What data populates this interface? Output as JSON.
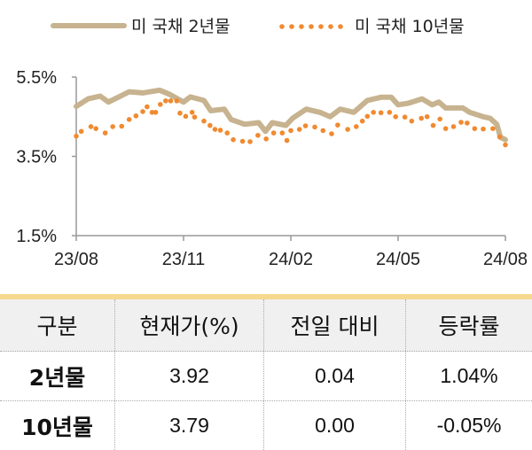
{
  "chart_data": {
    "type": "line",
    "title": "",
    "xlabel": "",
    "ylabel": "",
    "x_unit": "months since 23/08",
    "xticks": [
      "23/08",
      "23/11",
      "24/02",
      "24/05",
      "24/08"
    ],
    "yticks": [
      "5.5%",
      "3.5%",
      "1.5%"
    ],
    "ylim": [
      1.5,
      5.5
    ],
    "xlim": [
      0,
      12
    ],
    "legend_position": "top",
    "colors": {
      "two_year": "#c7b38f",
      "ten_year": "#f08a30"
    },
    "series": [
      {
        "name": "미 국채 2년물",
        "style": "line",
        "x": [
          0,
          0.33,
          0.67,
          0.9,
          1.19,
          1.48,
          1.86,
          2.33,
          2.62,
          3.0,
          3.19,
          3.57,
          3.76,
          4.14,
          4.33,
          4.71,
          5.1,
          5.29,
          5.48,
          5.86,
          6.05,
          6.43,
          6.81,
          7.1,
          7.38,
          7.76,
          8.14,
          8.52,
          8.81,
          9.0,
          9.29,
          9.67,
          9.95,
          10.14,
          10.33,
          10.81,
          11.0,
          11.38,
          11.57,
          11.76,
          11.86,
          12
        ],
        "y": [
          4.76,
          4.95,
          5.02,
          4.87,
          5.0,
          5.13,
          5.1,
          5.17,
          5.06,
          4.87,
          5.0,
          4.91,
          4.65,
          4.69,
          4.43,
          4.31,
          4.35,
          4.13,
          4.35,
          4.28,
          4.46,
          4.69,
          4.61,
          4.5,
          4.69,
          4.61,
          4.91,
          4.99,
          4.99,
          4.8,
          4.84,
          4.95,
          4.8,
          4.87,
          4.72,
          4.72,
          4.61,
          4.5,
          4.46,
          4.31,
          3.98,
          3.92
        ]
      },
      {
        "name": "미 국채 10년물",
        "style": "dots",
        "x": [
          0,
          0.14,
          0.41,
          0.55,
          0.81,
          1.02,
          1.27,
          1.48,
          1.67,
          1.86,
          1.98,
          2.12,
          2.22,
          2.35,
          2.5,
          2.64,
          2.81,
          2.9,
          3.06,
          3.24,
          3.31,
          3.57,
          3.74,
          3.88,
          4.03,
          4.22,
          4.39,
          4.65,
          4.86,
          5.08,
          5.31,
          5.52,
          5.76,
          5.89,
          6.0,
          6.24,
          6.41,
          6.67,
          6.9,
          7.14,
          7.31,
          7.59,
          7.83,
          8.0,
          8.14,
          8.31,
          8.52,
          8.76,
          8.93,
          9.19,
          9.38,
          9.65,
          9.81,
          9.98,
          10.17,
          10.33,
          10.55,
          10.76,
          10.93,
          11.14,
          11.38,
          11.65,
          11.84,
          12
        ],
        "y": [
          4.01,
          4.13,
          4.25,
          4.2,
          4.09,
          4.25,
          4.26,
          4.43,
          4.52,
          4.63,
          4.75,
          4.61,
          4.61,
          4.81,
          4.9,
          4.9,
          4.9,
          4.59,
          4.51,
          4.61,
          4.49,
          4.39,
          4.28,
          4.18,
          4.16,
          4.09,
          3.92,
          3.88,
          3.87,
          4.03,
          3.94,
          4.09,
          4.09,
          3.9,
          4.15,
          4.18,
          4.27,
          4.24,
          4.15,
          4.07,
          4.29,
          4.18,
          4.25,
          4.39,
          4.51,
          4.61,
          4.6,
          4.61,
          4.5,
          4.49,
          4.39,
          4.46,
          4.5,
          4.28,
          4.44,
          4.2,
          4.25,
          4.36,
          4.34,
          4.2,
          4.19,
          4.2,
          3.99,
          3.79
        ]
      }
    ]
  },
  "table": {
    "headers": [
      "구분",
      "현재가(%)",
      "전일 대비",
      "등락률"
    ],
    "rows": [
      [
        "2년물",
        "3.92",
        "0.04",
        "1.04%"
      ],
      [
        "10년물",
        "3.79",
        "0.00",
        "-0.05%"
      ]
    ]
  }
}
